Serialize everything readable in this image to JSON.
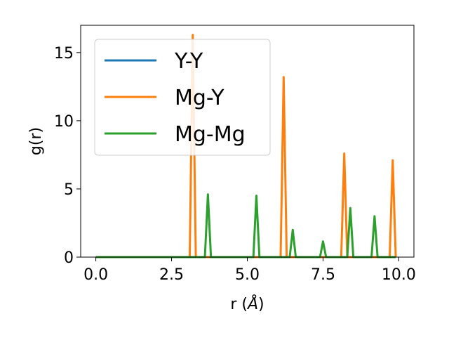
{
  "chart_data": {
    "type": "line",
    "title": "",
    "xlabel": "r (",
    "xlabel_unit": "Å",
    "xlabel_close": ")",
    "ylabel": "g(r)",
    "xlim": [
      -0.5,
      10.5
    ],
    "ylim": [
      0,
      17
    ],
    "xticks": [
      {
        "value": 0.0,
        "label": "0.0"
      },
      {
        "value": 2.5,
        "label": "2.5"
      },
      {
        "value": 5.0,
        "label": "5.0"
      },
      {
        "value": 7.5,
        "label": "7.5"
      },
      {
        "value": 10.0,
        "label": "10.0"
      }
    ],
    "yticks": [
      {
        "value": 0,
        "label": "0"
      },
      {
        "value": 5,
        "label": "5"
      },
      {
        "value": 10,
        "label": "10"
      },
      {
        "value": 15,
        "label": "15"
      }
    ],
    "grid": false,
    "legend_position": "upper-left",
    "series": [
      {
        "name": "Y-Y",
        "color": "#1f77b4",
        "x": [
          0,
          9.9
        ],
        "y": [
          0,
          0
        ]
      },
      {
        "name": "Mg-Y",
        "color": "#ff7f0e",
        "x": [
          0,
          3.1,
          3.2,
          3.3,
          6.1,
          6.2,
          6.3,
          8.1,
          8.2,
          8.3,
          9.7,
          9.8,
          9.9
        ],
        "y": [
          0,
          0,
          16.3,
          0,
          0,
          13.2,
          0,
          0,
          7.6,
          0,
          0,
          7.1,
          0
        ]
      },
      {
        "name": "Mg-Mg",
        "color": "#2ca02c",
        "x": [
          0,
          3.6,
          3.7,
          3.8,
          5.2,
          5.3,
          5.4,
          6.4,
          6.5,
          6.6,
          7.4,
          7.5,
          7.6,
          8.3,
          8.4,
          8.5,
          9.1,
          9.2,
          9.3,
          9.9
        ],
        "y": [
          0,
          0,
          4.6,
          0,
          0,
          4.5,
          0,
          0,
          2.0,
          0,
          0,
          1.15,
          0,
          0,
          3.6,
          0,
          0,
          3.0,
          0,
          0
        ]
      }
    ]
  }
}
